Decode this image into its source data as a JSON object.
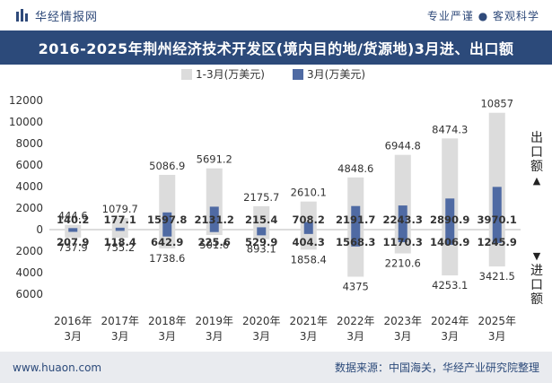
{
  "header": {
    "brand": "华经情报网",
    "tagline": "专业严谨 ● 客观科学",
    "title": "2016-2025年荆州经济技术开发区(境内目的地/货源地)3月进、出口额"
  },
  "side_labels": {
    "export": [
      "出",
      "口",
      "额"
    ],
    "import": [
      "进",
      "口",
      "额"
    ]
  },
  "footer": {
    "left": "www.huaon.com",
    "right": "数据来源：中国海关，华经产业研究院整理"
  },
  "colors": {
    "header_bg": "#2c4a7a",
    "cumulative_bar": "#dcdcdc",
    "month_bar": "#4f6aa3",
    "footer_bg": "#e9ebef"
  },
  "chart_data": {
    "type": "bar",
    "categories": [
      [
        "2016年",
        "3月"
      ],
      [
        "2017年",
        "3月"
      ],
      [
        "2018年",
        "3月"
      ],
      [
        "2019年",
        "3月"
      ],
      [
        "2020年",
        "3月"
      ],
      [
        "2021年",
        "3月"
      ],
      [
        "2022年",
        "3月"
      ],
      [
        "2023年",
        "3月"
      ],
      [
        "2024年",
        "3月"
      ],
      [
        "2025年",
        "3月"
      ]
    ],
    "legend": [
      "1-3月(万美元)",
      "3月(万美元)"
    ],
    "export": {
      "cumulative": [
        444.6,
        1079.7,
        5086.9,
        5691.2,
        2175.7,
        2610.1,
        4848.6,
        6944.8,
        8474.3,
        10857
      ],
      "month": [
        140.2,
        177.1,
        1597.8,
        2131.2,
        215.4,
        708.2,
        2191.7,
        2243.3,
        2890.9,
        3970.1
      ]
    },
    "import": {
      "cumulative": [
        737.9,
        755.2,
        1738.6,
        501.6,
        893.1,
        1858.4,
        4375,
        2210.6,
        4253.1,
        3421.5
      ],
      "month": [
        207.9,
        118.4,
        642.9,
        225.6,
        529.9,
        404.3,
        1568.3,
        1170.3,
        1406.9,
        1245.9
      ]
    },
    "ylim": [
      -6000,
      12000
    ],
    "yticks": [
      -6000,
      -4000,
      -2000,
      0,
      2000,
      4000,
      6000,
      8000,
      10000,
      12000
    ],
    "ytick_labels": [
      "6000",
      "4000",
      "2000",
      "0",
      "2000",
      "4000",
      "6000",
      "8000",
      "10000",
      "12000"
    ],
    "grid": false,
    "legend_position": "top"
  }
}
